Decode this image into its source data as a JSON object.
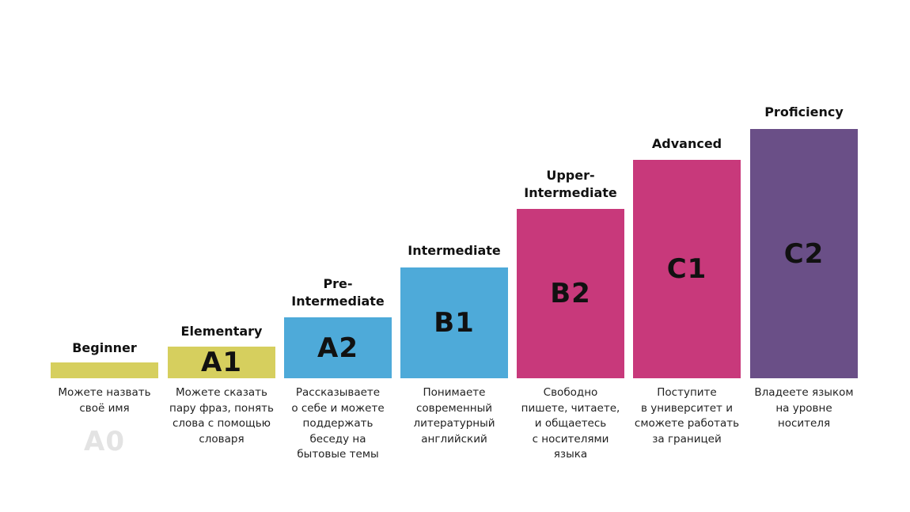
{
  "levels": [
    {
      "code": "A0",
      "title": "Beginner",
      "title_lines": [
        "Beginner"
      ],
      "desc_lines": [
        "Можете назвать",
        "своё имя"
      ],
      "color": "#d6cf5e"
    },
    {
      "code": "A1",
      "title": "Elementary",
      "title_lines": [
        "Elementary"
      ],
      "desc_lines": [
        "Можете сказать",
        "пару фраз, понять",
        "слова с помощью",
        "словаря"
      ],
      "color": "#d6cf5e"
    },
    {
      "code": "A2",
      "title": "Pre-Intermediate",
      "title_lines": [
        "Pre-",
        "Intermediate"
      ],
      "desc_lines": [
        "Рассказываете",
        "о себе и можете",
        "поддержать",
        "беседу на",
        "бытовые темы"
      ],
      "color": "#4eaad9"
    },
    {
      "code": "B1",
      "title": "Intermediate",
      "title_lines": [
        "Intermediate"
      ],
      "desc_lines": [
        "Понимаете",
        "современный",
        "литературный",
        "английский"
      ],
      "color": "#4eaad9"
    },
    {
      "code": "B2",
      "title": "Upper-Intermediate",
      "title_lines": [
        "Upper-",
        "Intermediate"
      ],
      "desc_lines": [
        "Свободно",
        "пишете, читаете,",
        "и общаетесь",
        "с носителями",
        "языка"
      ],
      "color": "#c8397b"
    },
    {
      "code": "C1",
      "title": "Advanced",
      "title_lines": [
        "Advanced"
      ],
      "desc_lines": [
        "Поступите",
        "в университет и",
        "сможете работать",
        "за границей"
      ],
      "color": "#c8397b"
    },
    {
      "code": "C2",
      "title": "Proficiency",
      "title_lines": [
        "Proficiency"
      ],
      "desc_lines": [
        "Владеете языком",
        "на уровне",
        "носителя"
      ],
      "color": "#6a4f87"
    }
  ]
}
